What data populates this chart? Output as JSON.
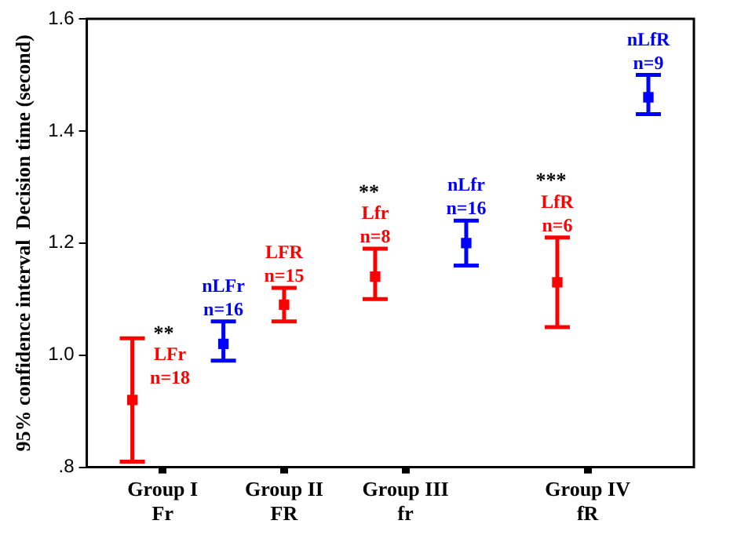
{
  "chart_data": {
    "type": "scatter",
    "ylabel": "95% confidence interval  Decision time (second)",
    "categories": [
      null,
      null,
      "Group I\nFr",
      null,
      null,
      null,
      "Group II\nFR",
      null,
      null,
      null,
      "Group III\nfr",
      null,
      null,
      null,
      null,
      null,
      "Group IV\nfR",
      null,
      null,
      null
    ],
    "series": [
      {
        "name": "LFr\nn=18",
        "color": "#ff0000",
        "values": [
          null,
          0.92,
          null,
          null,
          null,
          null,
          null,
          null,
          null,
          null,
          null,
          null,
          null,
          null,
          null,
          null,
          null,
          null,
          null,
          null
        ],
        "errors": [
          null,
          [
            0.81,
            1.03
          ],
          null,
          null,
          null,
          null,
          null,
          null,
          null,
          null,
          null,
          null,
          null,
          null,
          null,
          null,
          null,
          null,
          null,
          null
        ]
      },
      {
        "name": "nLFr\nn=16",
        "color": "#0000ff",
        "values": [
          null,
          null,
          null,
          null,
          1.02,
          null,
          null,
          null,
          null,
          null,
          null,
          null,
          null,
          null,
          null,
          null,
          null,
          null,
          null,
          null
        ],
        "errors": [
          null,
          null,
          null,
          null,
          [
            0.99,
            1.06
          ],
          null,
          null,
          null,
          null,
          null,
          null,
          null,
          null,
          null,
          null,
          null,
          null,
          null,
          null,
          null
        ]
      },
      {
        "name": "LFR\nn=15",
        "color": "#ff0000",
        "values": [
          null,
          null,
          null,
          null,
          null,
          null,
          1.09,
          null,
          null,
          null,
          null,
          null,
          null,
          null,
          null,
          null,
          null,
          null,
          null,
          null
        ],
        "errors": [
          null,
          null,
          null,
          null,
          null,
          null,
          [
            1.06,
            1.12
          ],
          null,
          null,
          null,
          null,
          null,
          null,
          null,
          null,
          null,
          null,
          null,
          null,
          null
        ]
      },
      {
        "name": "Lfr\nn=8",
        "color": "#ff0000",
        "values": [
          null,
          null,
          null,
          null,
          null,
          null,
          null,
          null,
          null,
          1.14,
          null,
          null,
          null,
          null,
          null,
          null,
          null,
          null,
          null,
          null
        ],
        "errors": [
          null,
          null,
          null,
          null,
          null,
          null,
          null,
          null,
          null,
          [
            1.1,
            1.19
          ],
          null,
          null,
          null,
          null,
          null,
          null,
          null,
          null,
          null,
          null
        ]
      },
      {
        "name": "nLfr\nn=16",
        "color": "#0000ff",
        "values": [
          null,
          null,
          null,
          null,
          null,
          null,
          null,
          null,
          null,
          null,
          null,
          null,
          1.2,
          null,
          null,
          null,
          null,
          null,
          null,
          null
        ],
        "errors": [
          null,
          null,
          null,
          null,
          null,
          null,
          null,
          null,
          null,
          null,
          null,
          null,
          [
            1.16,
            1.24
          ],
          null,
          null,
          null,
          null,
          null,
          null,
          null
        ]
      },
      {
        "name": "LfR\nn=6",
        "color": "#ff0000",
        "values": [
          null,
          null,
          null,
          null,
          null,
          null,
          null,
          null,
          null,
          null,
          null,
          null,
          null,
          null,
          null,
          1.13,
          null,
          null,
          null,
          null
        ],
        "errors": [
          null,
          null,
          null,
          null,
          null,
          null,
          null,
          null,
          null,
          null,
          null,
          null,
          null,
          null,
          null,
          [
            1.05,
            1.21
          ],
          null,
          null,
          null,
          null
        ]
      },
      {
        "name": "nLfR\nn=9",
        "color": "#0000ff",
        "values": [
          null,
          null,
          null,
          null,
          null,
          null,
          null,
          null,
          null,
          null,
          null,
          null,
          null,
          null,
          null,
          null,
          null,
          null,
          1.46,
          null
        ],
        "errors": [
          null,
          null,
          null,
          null,
          null,
          null,
          null,
          null,
          null,
          null,
          null,
          null,
          null,
          null,
          null,
          null,
          null,
          null,
          [
            1.43,
            1.5
          ],
          null
        ]
      }
    ],
    "ylim": [
      0.8,
      1.6
    ],
    "yticks": [
      1.6,
      1.4,
      1.2,
      {
        "value": 1.0,
        "label": "1.0"
      },
      {
        "value": 0.8,
        "label": ".8"
      }
    ],
    "grid": false,
    "annotations": [
      "**",
      "**",
      "***"
    ]
  }
}
